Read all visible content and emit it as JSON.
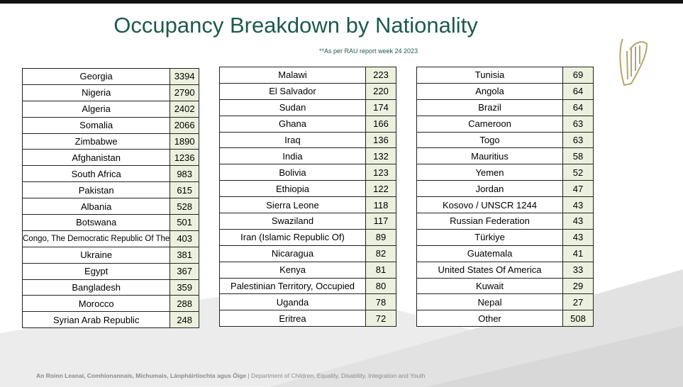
{
  "header": {
    "title": "Occupancy Breakdown by Nationality",
    "subtitle": "**As per RAU report week 24 2023"
  },
  "tables": [
    {
      "rows": [
        [
          "Georgia",
          3394
        ],
        [
          "Nigeria",
          2790
        ],
        [
          "Algeria",
          2402
        ],
        [
          "Somalia",
          2066
        ],
        [
          "Zimbabwe",
          1890
        ],
        [
          "Afghanistan",
          1236
        ],
        [
          "South Africa",
          983
        ],
        [
          "Pakistan",
          615
        ],
        [
          "Albania",
          528
        ],
        [
          "Botswana",
          501
        ],
        [
          "Congo, The Democratic Republic Of The",
          403
        ],
        [
          "Ukraine",
          381
        ],
        [
          "Egypt",
          367
        ],
        [
          "Bangladesh",
          359
        ],
        [
          "Morocco",
          288
        ],
        [
          "Syrian Arab Republic",
          248
        ]
      ]
    },
    {
      "rows": [
        [
          "Malawi",
          223
        ],
        [
          "El Salvador",
          220
        ],
        [
          "Sudan",
          174
        ],
        [
          "Ghana",
          166
        ],
        [
          "Iraq",
          136
        ],
        [
          "India",
          132
        ],
        [
          "Bolivia",
          123
        ],
        [
          "Ethiopia",
          122
        ],
        [
          "Sierra Leone",
          118
        ],
        [
          "Swaziland",
          117
        ],
        [
          "Iran (Islamic Republic Of)",
          89
        ],
        [
          "Nicaragua",
          82
        ],
        [
          "Kenya",
          81
        ],
        [
          "Palestinian Territory, Occupied",
          80
        ],
        [
          "Uganda",
          78
        ],
        [
          "Eritrea",
          72
        ]
      ]
    },
    {
      "rows": [
        [
          "Tunisia",
          69
        ],
        [
          "Angola",
          64
        ],
        [
          "Brazil",
          64
        ],
        [
          "Cameroon",
          63
        ],
        [
          "Togo",
          63
        ],
        [
          "Mauritius",
          58
        ],
        [
          "Yemen",
          52
        ],
        [
          "Jordan",
          47
        ],
        [
          "Kosovo / UNSCR 1244",
          43
        ],
        [
          "Russian Federation",
          43
        ],
        [
          "Türkiye",
          43
        ],
        [
          "Guatemala",
          41
        ],
        [
          "United States Of America",
          33
        ],
        [
          "Kuwait",
          29
        ],
        [
          "Nepal",
          27
        ],
        [
          "Other",
          508
        ]
      ]
    }
  ],
  "footer": {
    "irish": "An Roinn Leanaí, Comhionannais, Míchumais, Lánpháirtíochta agus Óige",
    "separator": "|",
    "english": "Department of Children, Equality, Disability, Integration and Youth"
  }
}
